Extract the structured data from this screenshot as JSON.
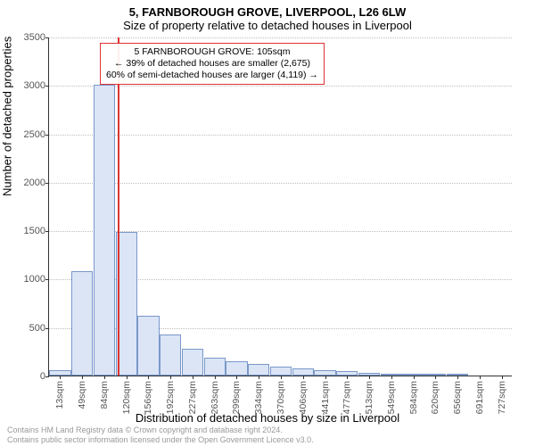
{
  "title_main": "5, FARNBOROUGH GROVE, LIVERPOOL, L26 6LW",
  "title_sub": "Size of property relative to detached houses in Liverpool",
  "y_axis_label": "Number of detached properties",
  "x_axis_label": "Distribution of detached houses by size in Liverpool",
  "annotation": {
    "line1": "5 FARNBOROUGH GROVE: 105sqm",
    "line2": "← 39% of detached houses are smaller (2,675)",
    "line3": "60% of semi-detached houses are larger (4,119) →"
  },
  "footer": {
    "line1": "Contains HM Land Registry data © Crown copyright and database right 2024.",
    "line2": "Contains public sector information licensed under the Open Government Licence v3.0."
  },
  "chart": {
    "type": "histogram",
    "ylim": [
      0,
      3500
    ],
    "ytick_step": 500,
    "yticks": [
      0,
      500,
      1000,
      1500,
      2000,
      2500,
      3000,
      3500
    ],
    "x_tick_labels": [
      "13sqm",
      "49sqm",
      "84sqm",
      "120sqm",
      "156sqm",
      "192sqm",
      "227sqm",
      "263sqm",
      "299sqm",
      "334sqm",
      "370sqm",
      "406sqm",
      "441sqm",
      "477sqm",
      "513sqm",
      "549sqm",
      "584sqm",
      "620sqm",
      "656sqm",
      "691sqm",
      "727sqm"
    ],
    "bar_values": [
      60,
      1080,
      3000,
      1480,
      620,
      420,
      280,
      180,
      150,
      120,
      95,
      70,
      55,
      45,
      25,
      15,
      10,
      8,
      5,
      3,
      0
    ],
    "bar_fill": "#dbe5f6",
    "bar_stroke": "#7a97c9",
    "grid_color": "#bfbfbf",
    "reference_x_index": 2.6,
    "reference_color": "#d33",
    "background": "#ffffff",
    "title_fontsize": 13,
    "axis_label_fontsize": 13,
    "tick_fontsize": 11
  }
}
